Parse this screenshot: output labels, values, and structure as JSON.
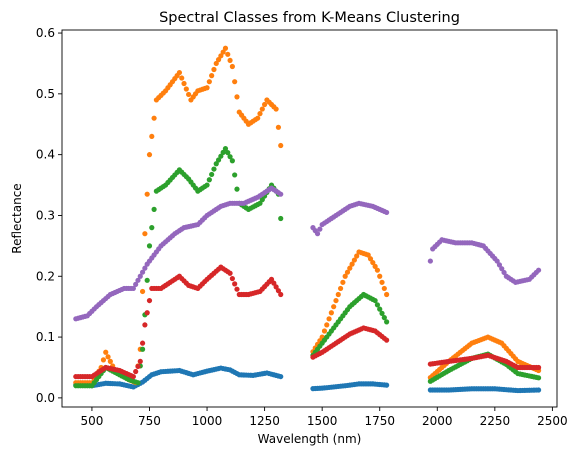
{
  "chart_data": {
    "type": "scatter",
    "title": "Spectral Classes from K-Means Clustering",
    "xlabel": "Wavelength (nm)",
    "ylabel": "Reflectance",
    "xlim": [
      370,
      2520
    ],
    "ylim": [
      -0.015,
      0.605
    ],
    "xticks": [
      500,
      750,
      1000,
      1250,
      1500,
      1750,
      2000,
      2250,
      2500
    ],
    "yticks": [
      0.0,
      0.1,
      0.2,
      0.3,
      0.4,
      0.5,
      0.6
    ],
    "ytick_labels": [
      "0.0",
      "0.1",
      "0.2",
      "0.3",
      "0.4",
      "0.5",
      "0.6"
    ],
    "grid": false,
    "legend": "none",
    "sampling_step_nm": 10,
    "gaps_nm": [
      [
        1330,
        1440
      ],
      [
        1790,
        1960
      ]
    ],
    "series": [
      {
        "color": "#1f77b4",
        "points": [
          [
            430,
            0.022
          ],
          [
            500,
            0.02
          ],
          [
            560,
            0.024
          ],
          [
            620,
            0.023
          ],
          [
            680,
            0.018
          ],
          [
            720,
            0.026
          ],
          [
            760,
            0.038
          ],
          [
            800,
            0.043
          ],
          [
            880,
            0.045
          ],
          [
            940,
            0.038
          ],
          [
            1000,
            0.044
          ],
          [
            1060,
            0.049
          ],
          [
            1100,
            0.046
          ],
          [
            1140,
            0.038
          ],
          [
            1200,
            0.037
          ],
          [
            1260,
            0.041
          ],
          [
            1320,
            0.035
          ],
          [
            1450,
            0.015
          ],
          [
            1500,
            0.016
          ],
          [
            1550,
            0.018
          ],
          [
            1600,
            0.02
          ],
          [
            1660,
            0.023
          ],
          [
            1720,
            0.023
          ],
          [
            1780,
            0.021
          ],
          [
            1960,
            0.013
          ],
          [
            2050,
            0.013
          ],
          [
            2150,
            0.015
          ],
          [
            2250,
            0.015
          ],
          [
            2350,
            0.012
          ],
          [
            2440,
            0.013
          ]
        ]
      },
      {
        "color": "#ff7f0e",
        "points": [
          [
            430,
            0.025
          ],
          [
            500,
            0.025
          ],
          [
            540,
            0.05
          ],
          [
            560,
            0.075
          ],
          [
            600,
            0.045
          ],
          [
            660,
            0.03
          ],
          [
            690,
            0.025
          ],
          [
            710,
            0.08
          ],
          [
            730,
            0.27
          ],
          [
            750,
            0.4
          ],
          [
            780,
            0.49
          ],
          [
            820,
            0.505
          ],
          [
            880,
            0.535
          ],
          [
            930,
            0.49
          ],
          [
            960,
            0.505
          ],
          [
            1000,
            0.51
          ],
          [
            1040,
            0.55
          ],
          [
            1080,
            0.575
          ],
          [
            1110,
            0.545
          ],
          [
            1140,
            0.47
          ],
          [
            1180,
            0.45
          ],
          [
            1220,
            0.46
          ],
          [
            1260,
            0.49
          ],
          [
            1300,
            0.475
          ],
          [
            1320,
            0.415
          ],
          [
            1450,
            0.07
          ],
          [
            1500,
            0.1
          ],
          [
            1550,
            0.15
          ],
          [
            1600,
            0.2
          ],
          [
            1660,
            0.24
          ],
          [
            1700,
            0.235
          ],
          [
            1740,
            0.21
          ],
          [
            1780,
            0.17
          ],
          [
            1960,
            0.03
          ],
          [
            2050,
            0.06
          ],
          [
            2150,
            0.09
          ],
          [
            2220,
            0.1
          ],
          [
            2280,
            0.09
          ],
          [
            2350,
            0.06
          ],
          [
            2440,
            0.045
          ]
        ]
      },
      {
        "color": "#2ca02c",
        "points": [
          [
            430,
            0.02
          ],
          [
            500,
            0.02
          ],
          [
            560,
            0.05
          ],
          [
            600,
            0.042
          ],
          [
            660,
            0.03
          ],
          [
            700,
            0.025
          ],
          [
            720,
            0.08
          ],
          [
            750,
            0.25
          ],
          [
            780,
            0.34
          ],
          [
            820,
            0.35
          ],
          [
            880,
            0.375
          ],
          [
            920,
            0.36
          ],
          [
            960,
            0.34
          ],
          [
            1000,
            0.35
          ],
          [
            1040,
            0.385
          ],
          [
            1080,
            0.41
          ],
          [
            1110,
            0.39
          ],
          [
            1140,
            0.32
          ],
          [
            1180,
            0.31
          ],
          [
            1230,
            0.32
          ],
          [
            1280,
            0.35
          ],
          [
            1310,
            0.335
          ],
          [
            1320,
            0.295
          ],
          [
            1450,
            0.065
          ],
          [
            1500,
            0.09
          ],
          [
            1560,
            0.12
          ],
          [
            1620,
            0.15
          ],
          [
            1680,
            0.17
          ],
          [
            1730,
            0.16
          ],
          [
            1780,
            0.125
          ],
          [
            1960,
            0.025
          ],
          [
            2050,
            0.045
          ],
          [
            2150,
            0.065
          ],
          [
            2220,
            0.072
          ],
          [
            2300,
            0.055
          ],
          [
            2350,
            0.04
          ],
          [
            2440,
            0.033
          ]
        ]
      },
      {
        "color": "#d62728",
        "points": [
          [
            430,
            0.035
          ],
          [
            500,
            0.035
          ],
          [
            560,
            0.05
          ],
          [
            620,
            0.045
          ],
          [
            680,
            0.035
          ],
          [
            710,
            0.06
          ],
          [
            730,
            0.12
          ],
          [
            760,
            0.18
          ],
          [
            800,
            0.18
          ],
          [
            880,
            0.2
          ],
          [
            920,
            0.185
          ],
          [
            960,
            0.18
          ],
          [
            1000,
            0.195
          ],
          [
            1060,
            0.215
          ],
          [
            1100,
            0.205
          ],
          [
            1140,
            0.17
          ],
          [
            1180,
            0.17
          ],
          [
            1230,
            0.175
          ],
          [
            1280,
            0.195
          ],
          [
            1320,
            0.17
          ],
          [
            1450,
            0.065
          ],
          [
            1500,
            0.075
          ],
          [
            1560,
            0.09
          ],
          [
            1620,
            0.105
          ],
          [
            1680,
            0.115
          ],
          [
            1730,
            0.11
          ],
          [
            1780,
            0.095
          ],
          [
            1960,
            0.055
          ],
          [
            2050,
            0.06
          ],
          [
            2150,
            0.065
          ],
          [
            2220,
            0.07
          ],
          [
            2300,
            0.06
          ],
          [
            2350,
            0.05
          ],
          [
            2440,
            0.05
          ]
        ]
      },
      {
        "color": "#9467bd",
        "points": [
          [
            430,
            0.13
          ],
          [
            480,
            0.135
          ],
          [
            520,
            0.15
          ],
          [
            580,
            0.17
          ],
          [
            640,
            0.18
          ],
          [
            680,
            0.18
          ],
          [
            710,
            0.2
          ],
          [
            740,
            0.22
          ],
          [
            800,
            0.25
          ],
          [
            860,
            0.27
          ],
          [
            900,
            0.28
          ],
          [
            960,
            0.285
          ],
          [
            1000,
            0.3
          ],
          [
            1060,
            0.315
          ],
          [
            1100,
            0.32
          ],
          [
            1160,
            0.32
          ],
          [
            1220,
            0.33
          ],
          [
            1280,
            0.345
          ],
          [
            1320,
            0.335
          ],
          [
            1450,
            0.285
          ],
          [
            1480,
            0.27
          ],
          [
            1500,
            0.285
          ],
          [
            1560,
            0.3
          ],
          [
            1620,
            0.315
          ],
          [
            1660,
            0.32
          ],
          [
            1720,
            0.315
          ],
          [
            1780,
            0.305
          ],
          [
            1960,
            0.205
          ],
          [
            1980,
            0.245
          ],
          [
            2020,
            0.26
          ],
          [
            2080,
            0.255
          ],
          [
            2150,
            0.255
          ],
          [
            2200,
            0.25
          ],
          [
            2260,
            0.225
          ],
          [
            2300,
            0.2
          ],
          [
            2340,
            0.19
          ],
          [
            2400,
            0.195
          ],
          [
            2440,
            0.21
          ]
        ]
      }
    ]
  }
}
